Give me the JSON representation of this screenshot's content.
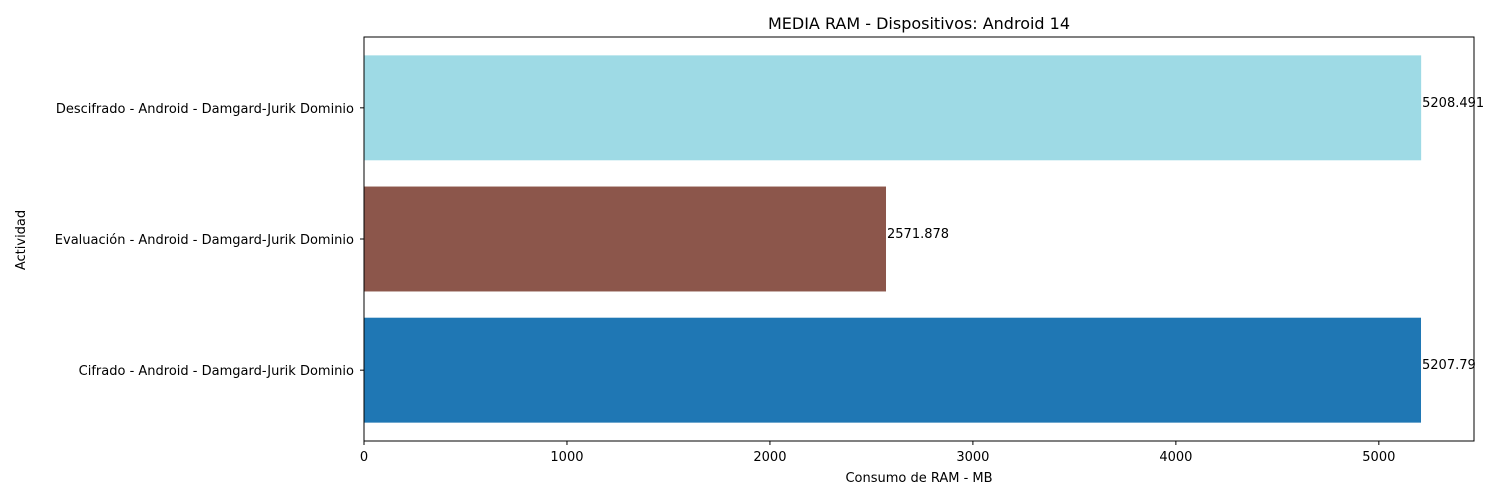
{
  "chart_data": {
    "type": "bar",
    "orientation": "horizontal",
    "title": "MEDIA RAM - Dispositivos: Android 14",
    "xlabel": "Consumo de RAM - MB",
    "ylabel": "Actividad",
    "xlim": [
      0,
      5468.9
    ],
    "xticks": [
      0,
      1000,
      2000,
      3000,
      4000,
      5000
    ],
    "grid": false,
    "categories": [
      "Cifrado - Android - Damgard-Jurik Dominio",
      "Evaluación - Android - Damgard-Jurik Dominio",
      "Descifrado - Android - Damgard-Jurik Dominio"
    ],
    "values": [
      5207.79,
      2571.878,
      5208.491
    ],
    "value_labels": [
      "5207.79",
      "2571.878",
      "5208.491"
    ],
    "colors": [
      "#1f77b4",
      "#8c564b",
      "#9edae5"
    ]
  }
}
